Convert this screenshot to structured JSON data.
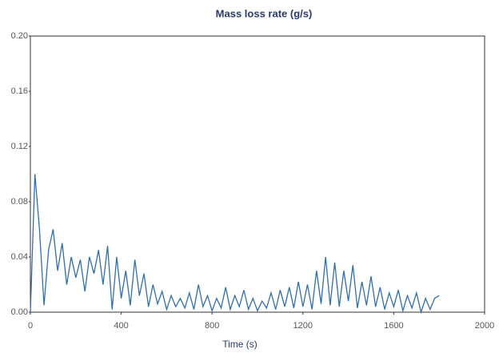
{
  "chart_data": {
    "type": "line",
    "title": "Mass loss rate  (g/s)",
    "x_label": "Time (s)",
    "color": "#2e6fad",
    "grid": false,
    "xlim": [
      0,
      2000
    ],
    "xticks": [
      0,
      400,
      800,
      1200,
      1600,
      2000
    ],
    "ylim": [
      0,
      0.2
    ],
    "yticks": [
      {
        "value": 0,
        "label": "0.00"
      },
      0.04,
      0.08,
      0.12,
      0.16,
      {
        "value": 0.2,
        "label": "0.20"
      }
    ],
    "x": [
      0,
      20,
      40,
      60,
      80,
      100,
      120,
      140,
      160,
      180,
      200,
      220,
      240,
      260,
      280,
      300,
      320,
      340,
      360,
      380,
      400,
      420,
      440,
      460,
      480,
      500,
      520,
      540,
      560,
      580,
      600,
      620,
      640,
      660,
      680,
      700,
      720,
      740,
      760,
      780,
      800,
      820,
      840,
      860,
      880,
      900,
      920,
      940,
      960,
      980,
      1000,
      1020,
      1040,
      1060,
      1080,
      1100,
      1120,
      1140,
      1160,
      1180,
      1200,
      1220,
      1240,
      1260,
      1280,
      1300,
      1320,
      1340,
      1360,
      1380,
      1400,
      1420,
      1440,
      1460,
      1480,
      1500,
      1520,
      1540,
      1560,
      1580,
      1600,
      1620,
      1640,
      1660,
      1680,
      1700,
      1720,
      1740,
      1760,
      1780,
      1800
    ],
    "values": [
      0.0,
      0.1,
      0.06,
      0.005,
      0.045,
      0.06,
      0.03,
      0.05,
      0.02,
      0.04,
      0.025,
      0.038,
      0.015,
      0.04,
      0.028,
      0.045,
      0.02,
      0.048,
      0.002,
      0.04,
      0.01,
      0.03,
      0.005,
      0.038,
      0.012,
      0.028,
      0.004,
      0.02,
      0.006,
      0.015,
      0.002,
      0.012,
      0.004,
      0.01,
      0.003,
      0.014,
      0.002,
      0.02,
      0.004,
      0.012,
      0.001,
      0.01,
      0.003,
      0.018,
      0.002,
      0.012,
      0.004,
      0.016,
      0.002,
      0.01,
      0.001,
      0.008,
      0.003,
      0.014,
      0.002,
      0.016,
      0.004,
      0.018,
      0.003,
      0.022,
      0.004,
      0.02,
      0.002,
      0.03,
      0.006,
      0.04,
      0.005,
      0.036,
      0.004,
      0.03,
      0.008,
      0.034,
      0.003,
      0.022,
      0.005,
      0.026,
      0.004,
      0.018,
      0.002,
      0.014,
      0.004,
      0.016,
      0.001,
      0.012,
      0.003,
      0.014,
      0.0,
      0.01,
      0.002,
      0.01,
      0.012
    ]
  }
}
